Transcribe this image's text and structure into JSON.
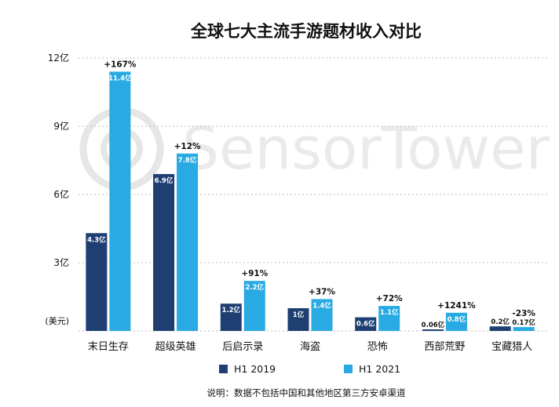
{
  "chart_data": {
    "type": "bar",
    "title": "全球七大主流手游题材收入对比",
    "unit_label": "(美元)",
    "y_ticks": [
      "12亿",
      "9亿",
      "6亿",
      "3亿"
    ],
    "y_tick_values": [
      12,
      9,
      6,
      3
    ],
    "ylim": [
      0,
      12
    ],
    "categories": [
      "末日生存",
      "超级英雄",
      "后启示录",
      "海盗",
      "恐怖",
      "西部荒野",
      "宝藏猎人"
    ],
    "series": [
      {
        "name": "H1 2019",
        "color": "#1f3f73",
        "values": [
          4.3,
          6.9,
          1.2,
          1.0,
          0.6,
          0.06,
          0.2
        ],
        "labels": [
          "4.3亿",
          "6.9亿",
          "1.2亿",
          "1亿",
          "0.6亿",
          "0.06亿",
          "0.2亿"
        ]
      },
      {
        "name": "H1 2021",
        "color": "#29aae2",
        "values": [
          11.4,
          7.8,
          2.2,
          1.4,
          1.1,
          0.8,
          0.17
        ],
        "labels": [
          "11.4亿",
          "7.8亿",
          "2.2亿",
          "1.4亿",
          "1.1亿",
          "0.8亿",
          "0.17亿"
        ]
      }
    ],
    "growth_labels": [
      "+167%",
      "+12%",
      "+91%",
      "+37%",
      "+72%",
      "+1241%",
      "-23%"
    ],
    "grid": true,
    "legend_position": "bottom"
  },
  "watermark": "SensorTower",
  "footnote": "说明：数据不包括中国和其他地区第三方安卓渠道"
}
